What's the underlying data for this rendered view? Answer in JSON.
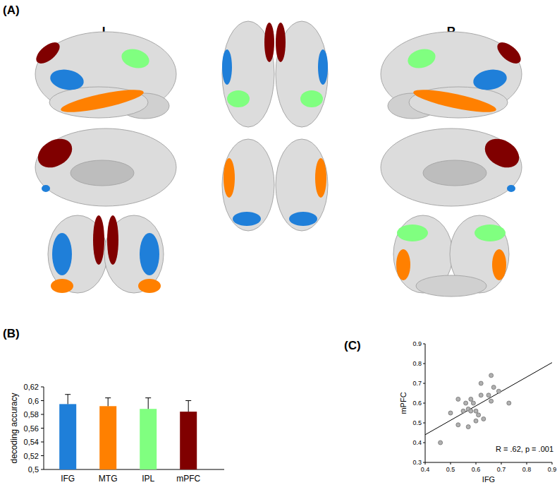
{
  "figure": {
    "panel_labels": [
      "(A)",
      "(B)",
      "(C)"
    ],
    "hemisphere_labels": [
      "L",
      "R"
    ]
  },
  "chart_data": [
    {
      "type": "bar",
      "categories": [
        "IFG",
        "MTG",
        "IPL",
        "mPFC"
      ],
      "values": [
        0.595,
        0.592,
        0.588,
        0.584
      ],
      "errors": [
        0.014,
        0.012,
        0.016,
        0.016
      ],
      "colors": [
        "#1f7fd9",
        "#ff8000",
        "#80ff80",
        "#800000"
      ],
      "ylabel": "decoding accuracy",
      "ylim": [
        0.5,
        0.62
      ],
      "yticks": [
        {
          "value": 0.5,
          "label": "0,5"
        },
        {
          "value": 0.52,
          "label": "0,52"
        },
        {
          "value": 0.54,
          "label": "0,54"
        },
        {
          "value": 0.56,
          "label": "0,56"
        },
        {
          "value": 0.58,
          "label": "0,58"
        },
        {
          "value": 0.6,
          "label": "0,6"
        },
        {
          "value": 0.62,
          "label": "0,62"
        }
      ]
    },
    {
      "type": "scatter",
      "xlabel": "IFG",
      "ylabel": "mPFC",
      "x": [
        0.46,
        0.5,
        0.53,
        0.53,
        0.55,
        0.56,
        0.57,
        0.57,
        0.58,
        0.58,
        0.59,
        0.6,
        0.6,
        0.61,
        0.62,
        0.62,
        0.63,
        0.65,
        0.66,
        0.66,
        0.67,
        0.69,
        0.73
      ],
      "values": [
        0.4,
        0.55,
        0.49,
        0.62,
        0.56,
        0.6,
        0.48,
        0.57,
        0.56,
        0.62,
        0.6,
        0.56,
        0.51,
        0.54,
        0.7,
        0.64,
        0.52,
        0.64,
        0.74,
        0.61,
        0.68,
        0.66,
        0.6
      ],
      "color": "#b0b0b0",
      "marker": "circle",
      "xlim": [
        0.4,
        0.9
      ],
      "ylim": [
        0.3,
        0.9
      ],
      "xticks": [
        0.4,
        0.5,
        0.6,
        0.7,
        0.8,
        0.9
      ],
      "yticks": [
        0.3,
        0.4,
        0.5,
        0.6,
        0.7,
        0.8,
        0.9
      ],
      "trend_line": {
        "x": [
          0.4,
          0.9
        ],
        "y": [
          0.44,
          0.805
        ]
      },
      "annotation": "R = .62, p = .001"
    }
  ]
}
